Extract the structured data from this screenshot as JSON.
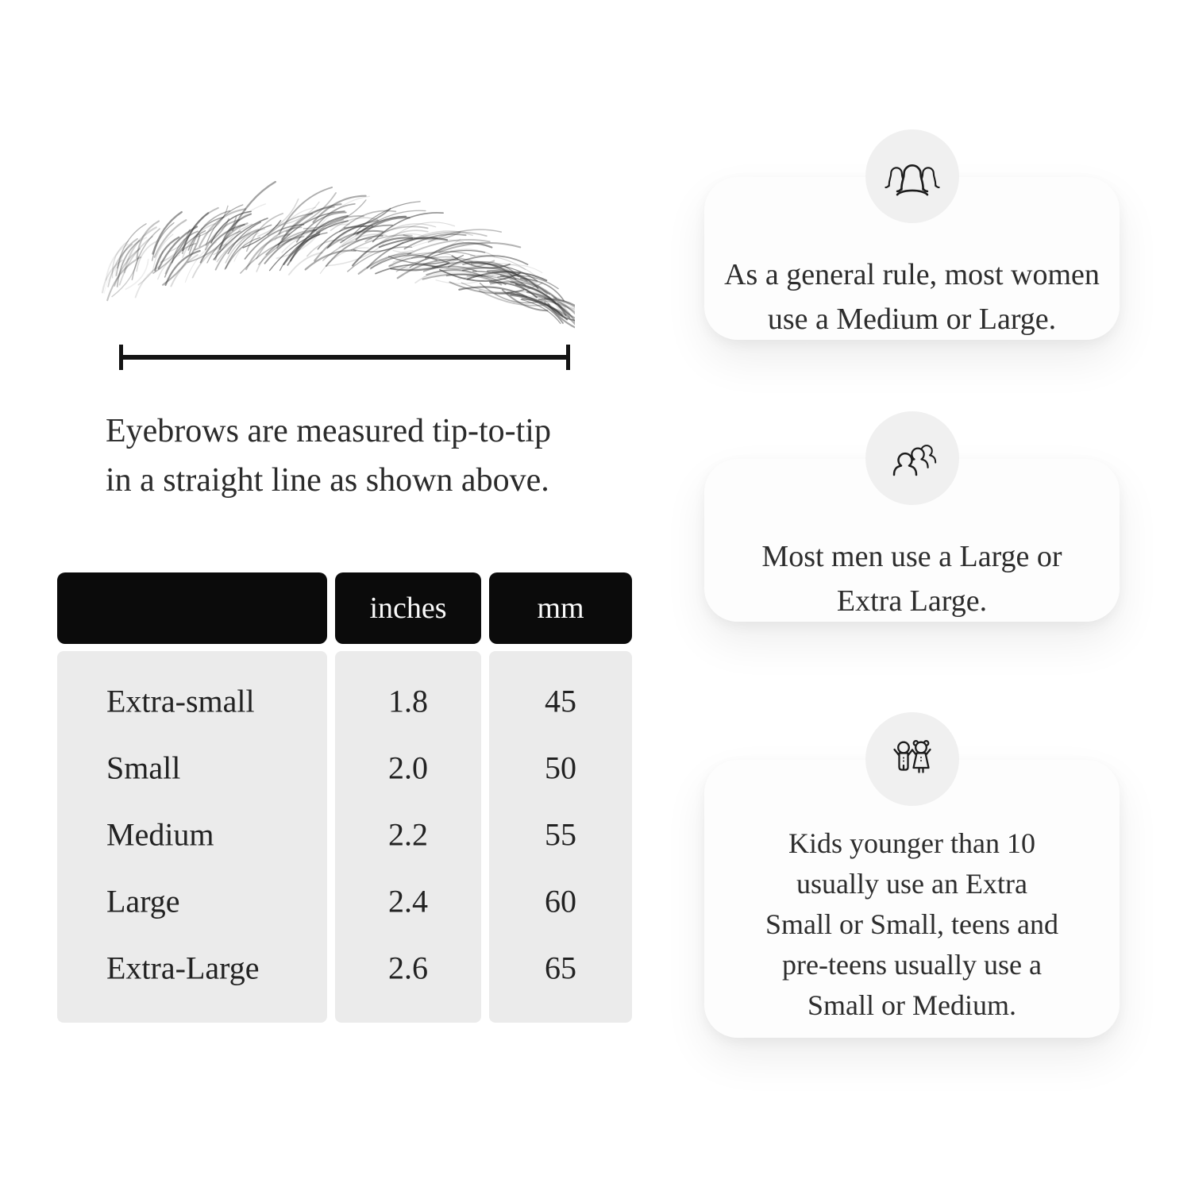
{
  "measurement": {
    "illustration": "eyebrow-illustration",
    "caption_lines": [
      "Eyebrows are measured tip-to-tip",
      "in a straight line as shown above."
    ]
  },
  "size_table": {
    "header": {
      "size_col": "",
      "inches_col": "inches",
      "mm_col": "mm"
    },
    "rows": [
      {
        "size": "Extra-small",
        "inches": "1.8",
        "mm": "45"
      },
      {
        "size": "Small",
        "inches": "2.0",
        "mm": "50"
      },
      {
        "size": "Medium",
        "inches": "2.2",
        "mm": "55"
      },
      {
        "size": "Large",
        "inches": "2.4",
        "mm": "60"
      },
      {
        "size": "Extra-Large",
        "inches": "2.6",
        "mm": "65"
      }
    ]
  },
  "tips": [
    {
      "icon": "women-group-icon",
      "lines": [
        "As a general rule, most women",
        "use a Medium or Large."
      ]
    },
    {
      "icon": "men-group-icon",
      "lines": [
        "Most men use a Large or",
        "Extra Large."
      ]
    },
    {
      "icon": "kids-icon",
      "lines": [
        "Kids younger than 10",
        "usually use an Extra",
        "Small or Small, teens and",
        "pre-teens usually use a",
        "Small or Medium."
      ]
    }
  ],
  "colors": {
    "page_bg": "#ffffff",
    "table_header_bg": "#0b0b0b",
    "table_header_text": "#fafafa",
    "table_cell_bg": "#ebebeb",
    "body_text": "#2b2b2b",
    "icon_circle_bg": "#f0f0f0",
    "ruler_line": "#141414"
  }
}
